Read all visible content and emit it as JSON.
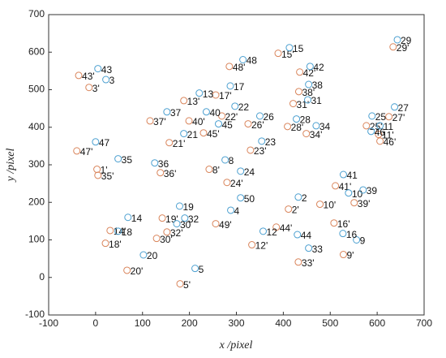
{
  "chart_data": {
    "type": "scatter",
    "xlabel": "x /pixel",
    "ylabel": "y /pixel",
    "xlim": [
      -100,
      700
    ],
    "ylim": [
      -100,
      700
    ],
    "xticks": [
      -100,
      0,
      100,
      200,
      300,
      400,
      500,
      600,
      700
    ],
    "yticks": [
      -100,
      0,
      100,
      200,
      300,
      400,
      500,
      600,
      700
    ],
    "series": [
      {
        "color": "#d9845a",
        "labels": [
          "43'",
          "3'",
          "47'",
          "1'",
          "35'",
          "36'",
          "37'",
          "21'",
          "40'",
          "13'",
          "17'",
          "22'",
          "45'",
          "26'",
          "48'",
          "15'",
          "42'",
          "38'",
          "31'",
          "28'",
          "34'",
          "23'",
          "8'",
          "24'",
          "19'",
          "32'",
          "30'",
          "14'",
          "18'",
          "20'",
          "5'",
          "49'",
          "9'",
          "33'",
          "16'",
          "44'",
          "12'",
          "2'",
          "10'",
          "41'",
          "39'",
          "29'",
          "25'",
          "27'",
          "11'",
          "46'"
        ],
        "x": [
          -36,
          -14,
          -40,
          3,
          5,
          138,
          116,
          157,
          199,
          188,
          256,
          269,
          230,
          325,
          285,
          389,
          435,
          433,
          421,
          409,
          449,
          330,
          242,
          280,
          142,
          152,
          130,
          31,
          21,
          67,
          180,
          256,
          528,
          432,
          508,
          385,
          333,
          411,
          478,
          511,
          551,
          634,
          577,
          625,
          603,
          606
        ],
        "y": [
          538,
          506,
          337,
          288,
          272,
          279,
          417,
          359,
          417,
          471,
          486,
          430,
          385,
          409,
          562,
          597,
          547,
          495,
          463,
          402,
          383,
          339,
          288,
          253,
          158,
          121,
          104,
          125,
          91,
          19,
          -17,
          143,
          61,
          41,
          145,
          134,
          87,
          182,
          195,
          244,
          199,
          614,
          404,
          428,
          381,
          363
        ]
      },
      {
        "color": "#4a9fd0",
        "labels": [
          "43",
          "3",
          "47",
          "35",
          "36",
          "37",
          "21",
          "40",
          "13",
          "17",
          "22",
          "45",
          "26",
          "48",
          "15",
          "42",
          "38",
          "31",
          "28",
          "34",
          "23",
          "8",
          "24",
          "50",
          "19",
          "32",
          "30",
          "14",
          "18",
          "20",
          "5",
          "4",
          "9",
          "33",
          "16",
          "44",
          "12",
          "2",
          "10",
          "41",
          "39",
          "29",
          "25",
          "27",
          "11",
          "46"
        ],
        "x": [
          5,
          22,
          0,
          48,
          126,
          152,
          188,
          236,
          221,
          287,
          297,
          262,
          350,
          314,
          413,
          457,
          454,
          452,
          428,
          470,
          354,
          276,
          309,
          309,
          179,
          190,
          173,
          69,
          48,
          102,
          212,
          288,
          556,
          454,
          527,
          430,
          357,
          432,
          539,
          528,
          570,
          643,
          589,
          637,
          606,
          587
        ],
        "y": [
          556,
          527,
          361,
          316,
          305,
          441,
          383,
          441,
          491,
          510,
          456,
          409,
          430,
          580,
          612,
          562,
          514,
          473,
          422,
          404,
          363,
          313,
          283,
          212,
          190,
          158,
          143,
          160,
          123,
          60,
          24,
          179,
          100,
          78,
          117,
          114,
          123,
          214,
          225,
          274,
          233,
          633,
          430,
          454,
          404,
          389
        ]
      }
    ]
  }
}
